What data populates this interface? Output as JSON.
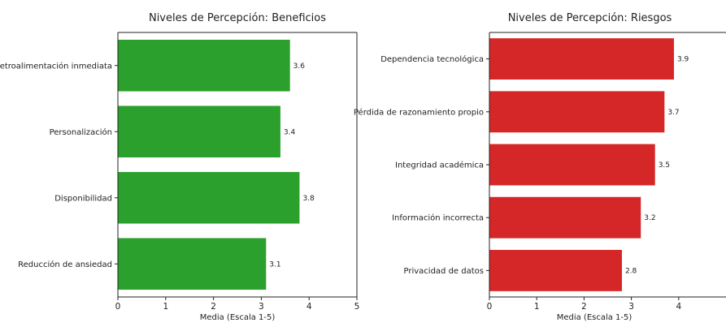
{
  "chart_data": [
    {
      "type": "bar",
      "orientation": "horizontal",
      "title": "Niveles de Percepción: Beneficios",
      "xlabel": "Media (Escala 1-5)",
      "ylabel": "",
      "categories": [
        "Retroalimentación inmediata",
        "Personalización",
        "Disponibilidad",
        "Reducción de ansiedad"
      ],
      "values": [
        3.6,
        3.4,
        3.8,
        3.1
      ],
      "value_labels": [
        "3.6",
        "3.4",
        "3.8",
        "3.1"
      ],
      "xlim": [
        0,
        5
      ],
      "xticks": [
        0,
        1,
        2,
        3,
        4,
        5
      ],
      "color": "#2ca02c",
      "grid": false,
      "legend": "none"
    },
    {
      "type": "bar",
      "orientation": "horizontal",
      "title": "Niveles de Percepción: Riesgos",
      "xlabel": "Media (Escala 1-5)",
      "ylabel": "",
      "categories": [
        "Dependencia tecnológica",
        "Pérdida de razonamiento propio",
        "Integridad académica",
        "Información incorrecta",
        "Privacidad de datos"
      ],
      "values": [
        3.9,
        3.7,
        3.5,
        3.2,
        2.8
      ],
      "value_labels": [
        "3.9",
        "3.7",
        "3.5",
        "3.2",
        "2.8"
      ],
      "xlim": [
        0,
        5
      ],
      "xticks": [
        0,
        1,
        2,
        3,
        4
      ],
      "color": "#d62728",
      "grid": false,
      "legend": "none"
    }
  ]
}
